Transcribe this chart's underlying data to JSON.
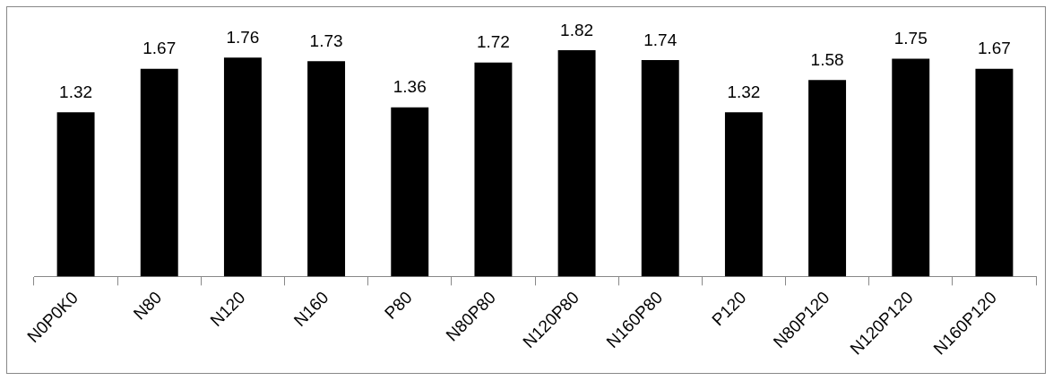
{
  "chart_data": {
    "type": "bar",
    "categories": [
      "N0P0K0",
      "N80",
      "N120",
      "N160",
      "P80",
      "N80P80",
      "N120P80",
      "N160P80",
      "P120",
      "N80P120",
      "N120P120",
      "N160P120"
    ],
    "values": [
      1.32,
      1.67,
      1.76,
      1.73,
      1.36,
      1.72,
      1.82,
      1.74,
      1.32,
      1.58,
      1.75,
      1.67
    ],
    "color": "#000000",
    "data_labels": true,
    "grid": false,
    "legend": false
  }
}
